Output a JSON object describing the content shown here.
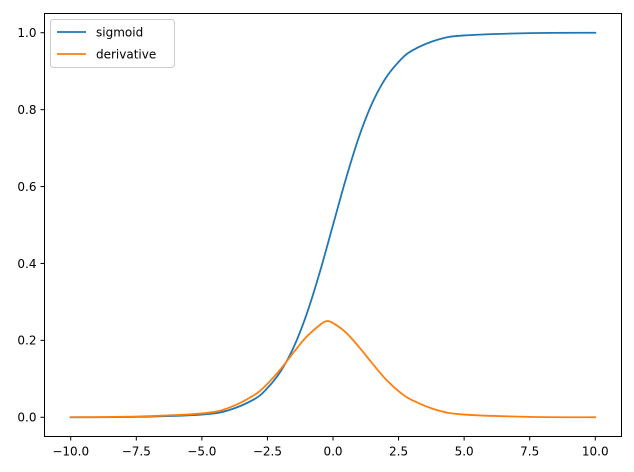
{
  "chart_data": {
    "type": "line",
    "title": "",
    "xlabel": "",
    "ylabel": "",
    "xlim": [
      -11.0,
      11.0
    ],
    "ylim": [
      -0.05,
      1.05
    ],
    "x_ticks": [
      -10.0,
      -7.5,
      -5.0,
      -2.5,
      0.0,
      2.5,
      5.0,
      7.5,
      10.0
    ],
    "x_tick_labels": [
      "−10.0",
      "−7.5",
      "−5.0",
      "−2.5",
      "0.0",
      "2.5",
      "5.0",
      "7.5",
      "10.0"
    ],
    "y_ticks": [
      0.0,
      0.2,
      0.4,
      0.6,
      0.8,
      1.0
    ],
    "y_tick_labels": [
      "0.0",
      "0.2",
      "0.4",
      "0.6",
      "0.8",
      "1.0"
    ],
    "grid": false,
    "legend_position": "upper-left",
    "series": [
      {
        "name": "sigmoid",
        "color": "#1f77b4",
        "x": [
          -10.0,
          -7.5,
          -5.0,
          -4.0,
          -3.0,
          -2.5,
          -2.0,
          -1.5,
          -1.0,
          -0.5,
          0.0,
          0.5,
          1.0,
          1.5,
          2.0,
          2.5,
          3.0,
          4.0,
          5.0,
          7.5,
          10.0
        ],
        "y": [
          0.0,
          0.001,
          0.007,
          0.018,
          0.047,
          0.076,
          0.119,
          0.182,
          0.269,
          0.378,
          0.5,
          0.622,
          0.731,
          0.818,
          0.881,
          0.924,
          0.953,
          0.982,
          0.993,
          0.999,
          1.0
        ]
      },
      {
        "name": "derivative",
        "color": "#ff7f0e",
        "x": [
          -10.0,
          -7.5,
          -5.0,
          -4.0,
          -3.0,
          -2.5,
          -2.0,
          -1.5,
          -1.0,
          -0.5,
          -0.25,
          0.0,
          0.5,
          1.0,
          1.5,
          2.0,
          2.5,
          3.0,
          4.0,
          5.0,
          7.5,
          10.0
        ],
        "y": [
          0.0,
          0.002,
          0.01,
          0.024,
          0.058,
          0.087,
          0.125,
          0.169,
          0.21,
          0.24,
          0.25,
          0.245,
          0.22,
          0.182,
          0.14,
          0.1,
          0.068,
          0.045,
          0.018,
          0.007,
          0.001,
          0.0
        ]
      }
    ]
  }
}
